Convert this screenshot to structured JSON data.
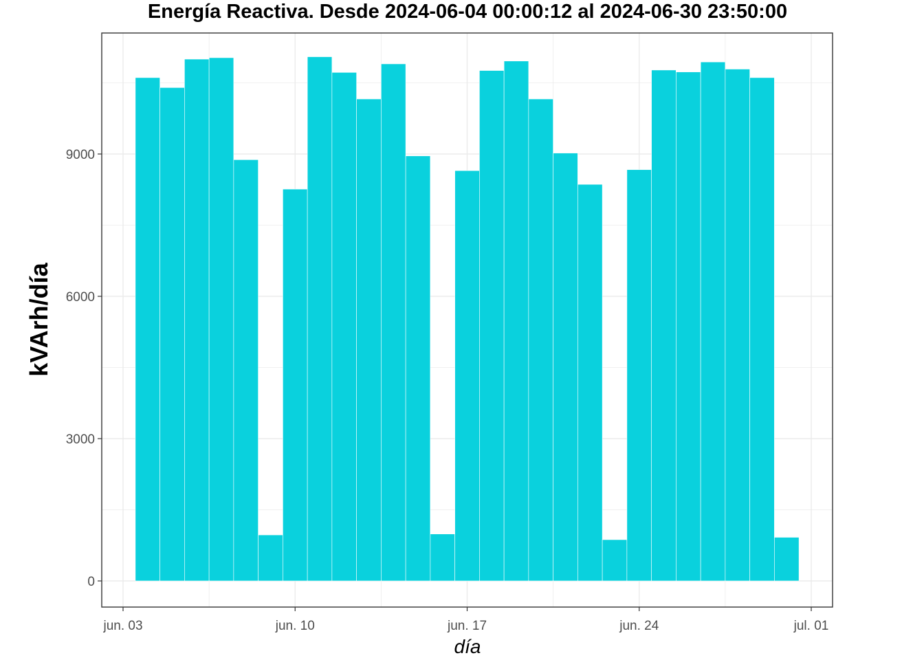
{
  "chart_data": {
    "type": "bar",
    "title": "Energía Reactiva. Desde  2024-06-04 00:00:12  al  2024-06-30 23:50:00",
    "xlabel": "día",
    "ylabel": "kVArh/día",
    "x_ticks": [
      "jun. 03",
      "jun. 10",
      "jun. 17",
      "jun. 24",
      "jul. 01"
    ],
    "y_ticks": [
      0,
      3000,
      6000,
      9000
    ],
    "ylim": [
      -550,
      11500
    ],
    "grid": true,
    "bar_color": "#0ad1dd",
    "categories": [
      "2024-06-04",
      "2024-06-05",
      "2024-06-06",
      "2024-06-07",
      "2024-06-08",
      "2024-06-09",
      "2024-06-10",
      "2024-06-11",
      "2024-06-12",
      "2024-06-13",
      "2024-06-14",
      "2024-06-15",
      "2024-06-16",
      "2024-06-17",
      "2024-06-18",
      "2024-06-19",
      "2024-06-20",
      "2024-06-21",
      "2024-06-22",
      "2024-06-23",
      "2024-06-24",
      "2024-06-25",
      "2024-06-26",
      "2024-06-27",
      "2024-06-28",
      "2024-06-29",
      "2024-06-30"
    ],
    "values": [
      10610,
      10400,
      11000,
      11030,
      8880,
      970,
      8260,
      11050,
      10720,
      10160,
      10900,
      8960,
      990,
      8650,
      10760,
      10960,
      10160,
      9020,
      8360,
      870,
      8670,
      10770,
      10730,
      10940,
      10790,
      10610,
      920
    ]
  }
}
